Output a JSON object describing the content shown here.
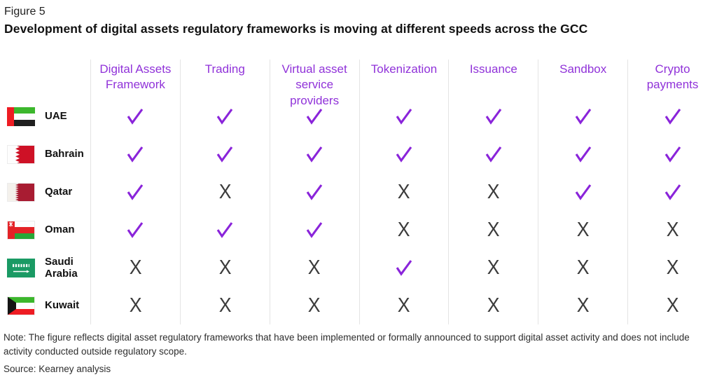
{
  "figure_label": "Figure 5",
  "title": "Development of digital assets regulatory frameworks is moving at different speeds across the GCC",
  "note": "Note: The figure reflects digital asset regulatory frameworks that have been implemented or formally announced to support digital asset activity and does not include activity conducted outside regulatory scope.",
  "source": "Source: Kearney analysis",
  "colors": {
    "header_purple": "#9032d9",
    "check_purple": "#8a24da",
    "x_dark": "#3b3b3b",
    "divider": "#e4e4e4"
  },
  "chart_data": {
    "type": "table",
    "title": "Development of digital assets regulatory frameworks is moving at different speeds across the GCC",
    "columns": [
      "Digital Assets Framework",
      "Trading",
      "Virtual asset service providers",
      "Tokenization",
      "Issuance",
      "Sandbox",
      "Crypto payments"
    ],
    "rows": [
      {
        "country": "UAE",
        "flag": "uae",
        "values": [
          "check",
          "check",
          "check",
          "check",
          "check",
          "check",
          "check"
        ]
      },
      {
        "country": "Bahrain",
        "flag": "bahrain",
        "values": [
          "check",
          "check",
          "check",
          "check",
          "check",
          "check",
          "check"
        ]
      },
      {
        "country": "Qatar",
        "flag": "qatar",
        "values": [
          "check",
          "x",
          "check",
          "x",
          "x",
          "check",
          "check"
        ]
      },
      {
        "country": "Oman",
        "flag": "oman",
        "values": [
          "check",
          "check",
          "check",
          "x",
          "x",
          "x",
          "x"
        ]
      },
      {
        "country": "Saudi Arabia",
        "flag": "saudi",
        "values": [
          "x",
          "x",
          "x",
          "check",
          "x",
          "x",
          "x"
        ]
      },
      {
        "country": "Kuwait",
        "flag": "kuwait",
        "values": [
          "x",
          "x",
          "x",
          "x",
          "x",
          "x",
          "x"
        ]
      }
    ]
  }
}
